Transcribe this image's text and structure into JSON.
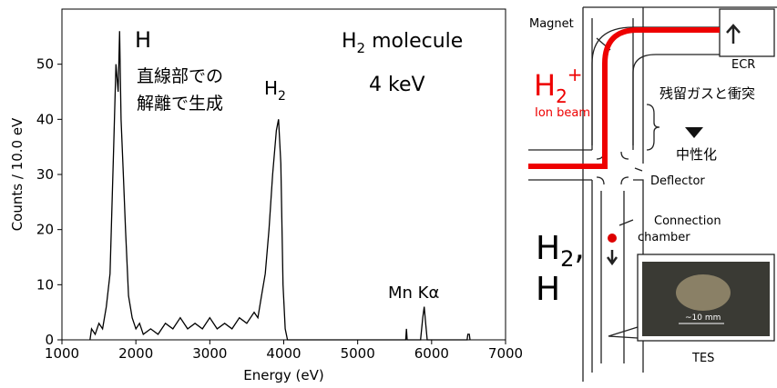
{
  "chart_data": {
    "type": "line",
    "color": "#000000",
    "x": [
      1380,
      1400,
      1450,
      1500,
      1550,
      1600,
      1650,
      1700,
      1730,
      1760,
      1780,
      1800,
      1830,
      1860,
      1900,
      1950,
      2000,
      2050,
      2100,
      2200,
      2300,
      2400,
      2500,
      2600,
      2700,
      2800,
      2900,
      3000,
      3100,
      3200,
      3300,
      3400,
      3500,
      3600,
      3650,
      3700,
      3750,
      3800,
      3850,
      3900,
      3930,
      3960,
      3990,
      4020,
      4050,
      5650,
      5660,
      5670,
      5850,
      5880,
      5900,
      5920,
      5940,
      6480,
      6490,
      6510,
      6520
    ],
    "values": [
      0,
      2,
      1,
      3,
      2,
      6,
      12,
      35,
      50,
      45,
      56,
      40,
      30,
      20,
      8,
      4,
      2,
      3,
      1,
      2,
      1,
      3,
      2,
      4,
      2,
      3,
      2,
      4,
      2,
      3,
      2,
      4,
      3,
      5,
      4,
      8,
      12,
      20,
      30,
      38,
      40,
      32,
      10,
      2,
      0,
      0,
      2,
      0,
      0,
      4,
      6,
      3,
      0,
      0,
      1,
      1,
      0
    ],
    "xlim": [
      1000,
      7000
    ],
    "ylim": [
      0,
      60
    ],
    "xticks": [
      1000,
      2000,
      3000,
      4000,
      5000,
      6000,
      7000
    ],
    "yticks": [
      0,
      10,
      20,
      30,
      40,
      50
    ],
    "x_label": "Energy (eV)",
    "y_label": "Counts / 10.0 eV",
    "annotations": {
      "h_peak": "H",
      "h_note": [
        "直線部での",
        "解離で生成"
      ],
      "h2_peak": {
        "main": "H",
        "sub": "2"
      },
      "molecule": {
        "main": "H",
        "sub": "2",
        "rest": " molecule"
      },
      "energy": "4 keV",
      "mn": "Mn Kα"
    }
  },
  "diagram": {
    "magnet": "Magnet",
    "ecr": "ECR",
    "ion": {
      "main": "H",
      "sub": "2",
      "sup": "+"
    },
    "ion_beam": "Ion beam",
    "collision": "残留ガスと衝突",
    "neutral": "中性化",
    "deflector": "Deflector",
    "chamber": [
      "Connection",
      "chamber"
    ],
    "neutrals": {
      "main": "H",
      "sub": "2",
      "rest": ",",
      "line2": "H"
    },
    "tes": "TES",
    "scale": "~10 mm"
  }
}
